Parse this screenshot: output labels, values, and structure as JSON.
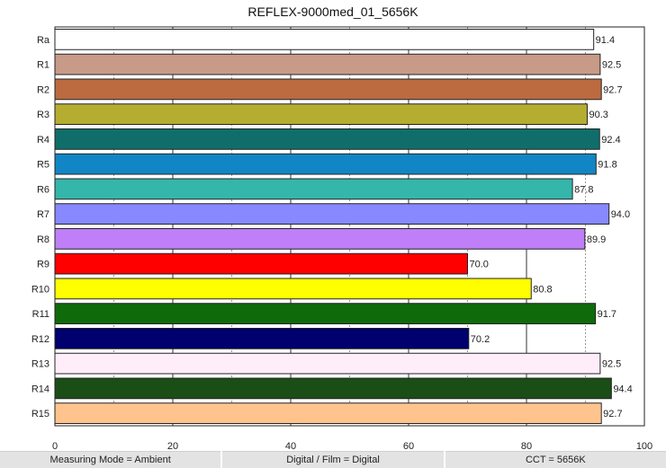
{
  "chart_data": {
    "type": "bar",
    "orientation": "horizontal",
    "title": "REFLEX-9000med_01_5656K",
    "xlabel": "",
    "ylabel": "",
    "xlim": [
      0,
      100
    ],
    "xticks": [
      0,
      20,
      40,
      60,
      80,
      100
    ],
    "grid": true,
    "categories": [
      "Ra",
      "R1",
      "R2",
      "R3",
      "R4",
      "R5",
      "R6",
      "R7",
      "R8",
      "R9",
      "R10",
      "R11",
      "R12",
      "R13",
      "R14",
      "R15"
    ],
    "values": [
      91.4,
      92.5,
      92.7,
      90.3,
      92.4,
      91.8,
      87.8,
      94.0,
      89.9,
      70.0,
      80.8,
      91.7,
      70.2,
      92.5,
      94.4,
      92.7
    ],
    "value_labels": [
      "91.4",
      "92.5",
      "92.7",
      "90.3",
      "92.4",
      "91.8",
      "87.8",
      "94.0",
      "89.9",
      "70.0",
      "80.8",
      "91.7",
      "70.2",
      "92.5",
      "94.4",
      "92.7"
    ],
    "colors": [
      "#ffffff",
      "#c89a88",
      "#bc6a40",
      "#b5ad30",
      "#0f6e6a",
      "#1286c4",
      "#34b6aa",
      "#8888ff",
      "#c07ef8",
      "#ff0000",
      "#ffff00",
      "#0f6a0a",
      "#00006e",
      "#ffeefa",
      "#1b4e16",
      "#ffc48e"
    ]
  },
  "footer": {
    "measuring_mode": "Measuring Mode = Ambient",
    "film": "Digital / Film = Digital",
    "cct": "CCT = 5656K"
  }
}
